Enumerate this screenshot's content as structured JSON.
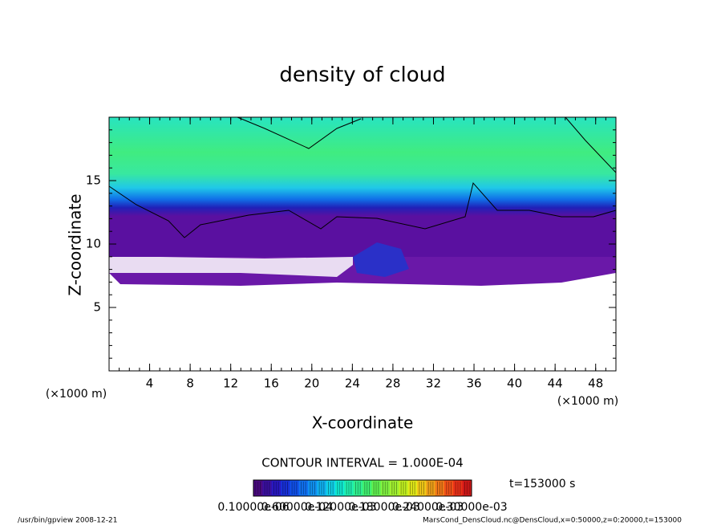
{
  "chart_data": {
    "type": "contour",
    "title": "density of cloud",
    "xlabel": "X-coordinate",
    "ylabel": "Z-coordinate",
    "xunit": "(×1000 m)",
    "yunit": "(×1000 m)",
    "xlim": [
      0,
      50
    ],
    "ylim": [
      0,
      20
    ],
    "xticks": [
      4,
      8,
      12,
      16,
      20,
      24,
      28,
      32,
      36,
      40,
      44,
      48
    ],
    "yticks": [
      5,
      10,
      15
    ],
    "contour_interval": "CONTOUR INTERVAL = 1.000E-04",
    "time": "t=153000 s",
    "colorbar_labels": [
      "0.10000e-06",
      "0.60000e-04",
      "0.12000e-03",
      "0.18000e-03",
      "0.24000e-03",
      "0.30000e-03"
    ],
    "colorbar_colors": [
      "#4a0a80",
      "#3a10a0",
      "#2818c0",
      "#1830d8",
      "#1050e8",
      "#1070f0",
      "#1090f0",
      "#10b0f0",
      "#10d0e8",
      "#10e8d0",
      "#20f0b0",
      "#30f090",
      "#40f070",
      "#60f050",
      "#80f040",
      "#a0f030",
      "#c0f020",
      "#e0e818",
      "#f0c818",
      "#f0a018",
      "#f07818",
      "#f05018",
      "#e83018",
      "#d01818"
    ],
    "footer_left": "/usr/bin/gpview  2008-12-21",
    "footer_right": "MarsCond_DensCloud.nc@DensCloud,x=0:50000,z=0:20000,t=153000"
  }
}
